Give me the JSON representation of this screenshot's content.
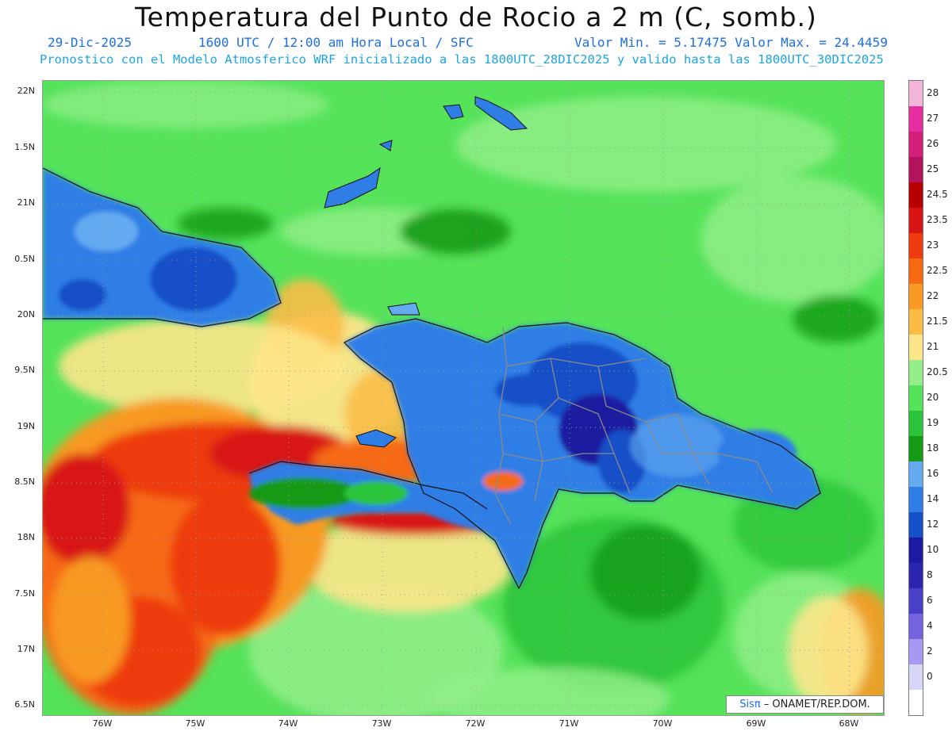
{
  "title": "Temperatura del Punto de Rocio a 2 m (C, somb.)",
  "date": "29-Dic-2025",
  "time_info": "1600 UTC / 12:00 am Hora Local / SFC",
  "min_max": "Valor Min. = 5.17475  Valor Max. = 24.4459",
  "model_info": "Pronostico con el Modelo Atmosferico WRF inicializado a las 1800UTC_28DIC2025 y valido hasta las  1800UTC_30DIC2025",
  "credit_sis": "Sisπ",
  "credit_rest": " – ONAMET/REP.DOM.",
  "lat_labels": [
    "22N",
    "1.5N",
    "21N",
    "0.5N",
    "20N",
    "9.5N",
    "19N",
    "8.5N",
    "18N",
    "7.5N",
    "17N",
    "6.5N"
  ],
  "lon_labels": [
    "76W",
    "75W",
    "74W",
    "73W",
    "72W",
    "71W",
    "70W",
    "69W",
    "68W"
  ],
  "legend": [
    {
      "label": "28",
      "color": "#f4b6d8"
    },
    {
      "label": "27",
      "color": "#e52ea0"
    },
    {
      "label": "26",
      "color": "#d2207a"
    },
    {
      "label": "25",
      "color": "#b2135a"
    },
    {
      "label": "24.5",
      "color": "#b80000"
    },
    {
      "label": "23.5",
      "color": "#d81414"
    },
    {
      "label": "23",
      "color": "#ee3a0c"
    },
    {
      "label": "22.5",
      "color": "#f66a12"
    },
    {
      "label": "22",
      "color": "#f89a24"
    },
    {
      "label": "21.5",
      "color": "#fbbc46"
    },
    {
      "label": "21",
      "color": "#fde58a"
    },
    {
      "label": "20.5",
      "color": "#94ef8a"
    },
    {
      "label": "20",
      "color": "#55e35a"
    },
    {
      "label": "19",
      "color": "#2cc43a"
    },
    {
      "label": "18",
      "color": "#149a14"
    },
    {
      "label": "16",
      "color": "#63aaf0"
    },
    {
      "label": "14",
      "color": "#2e7ee6"
    },
    {
      "label": "12",
      "color": "#1550c8"
    },
    {
      "label": "10",
      "color": "#1c1aa0"
    },
    {
      "label": "8",
      "color": "#2a26b0"
    },
    {
      "label": "6",
      "color": "#4a40c8"
    },
    {
      "label": "4",
      "color": "#7464e0"
    },
    {
      "label": "2",
      "color": "#a898f2"
    },
    {
      "label": "0",
      "color": "#d6d6f6"
    },
    {
      "label": "",
      "color": "#ffffff"
    }
  ],
  "colors": {
    "green_base": "#55e35a",
    "light_green": "#94ef8a",
    "dark_green": "#149a14",
    "blue": "#2e7ee6",
    "light_blue": "#63aaf0",
    "navy": "#1c1aa0",
    "yellow": "#fde58a",
    "orange": "#f89a24",
    "red": "#ee3a0c",
    "dark_red": "#d81414",
    "border_gray": "#8a8a8a"
  }
}
